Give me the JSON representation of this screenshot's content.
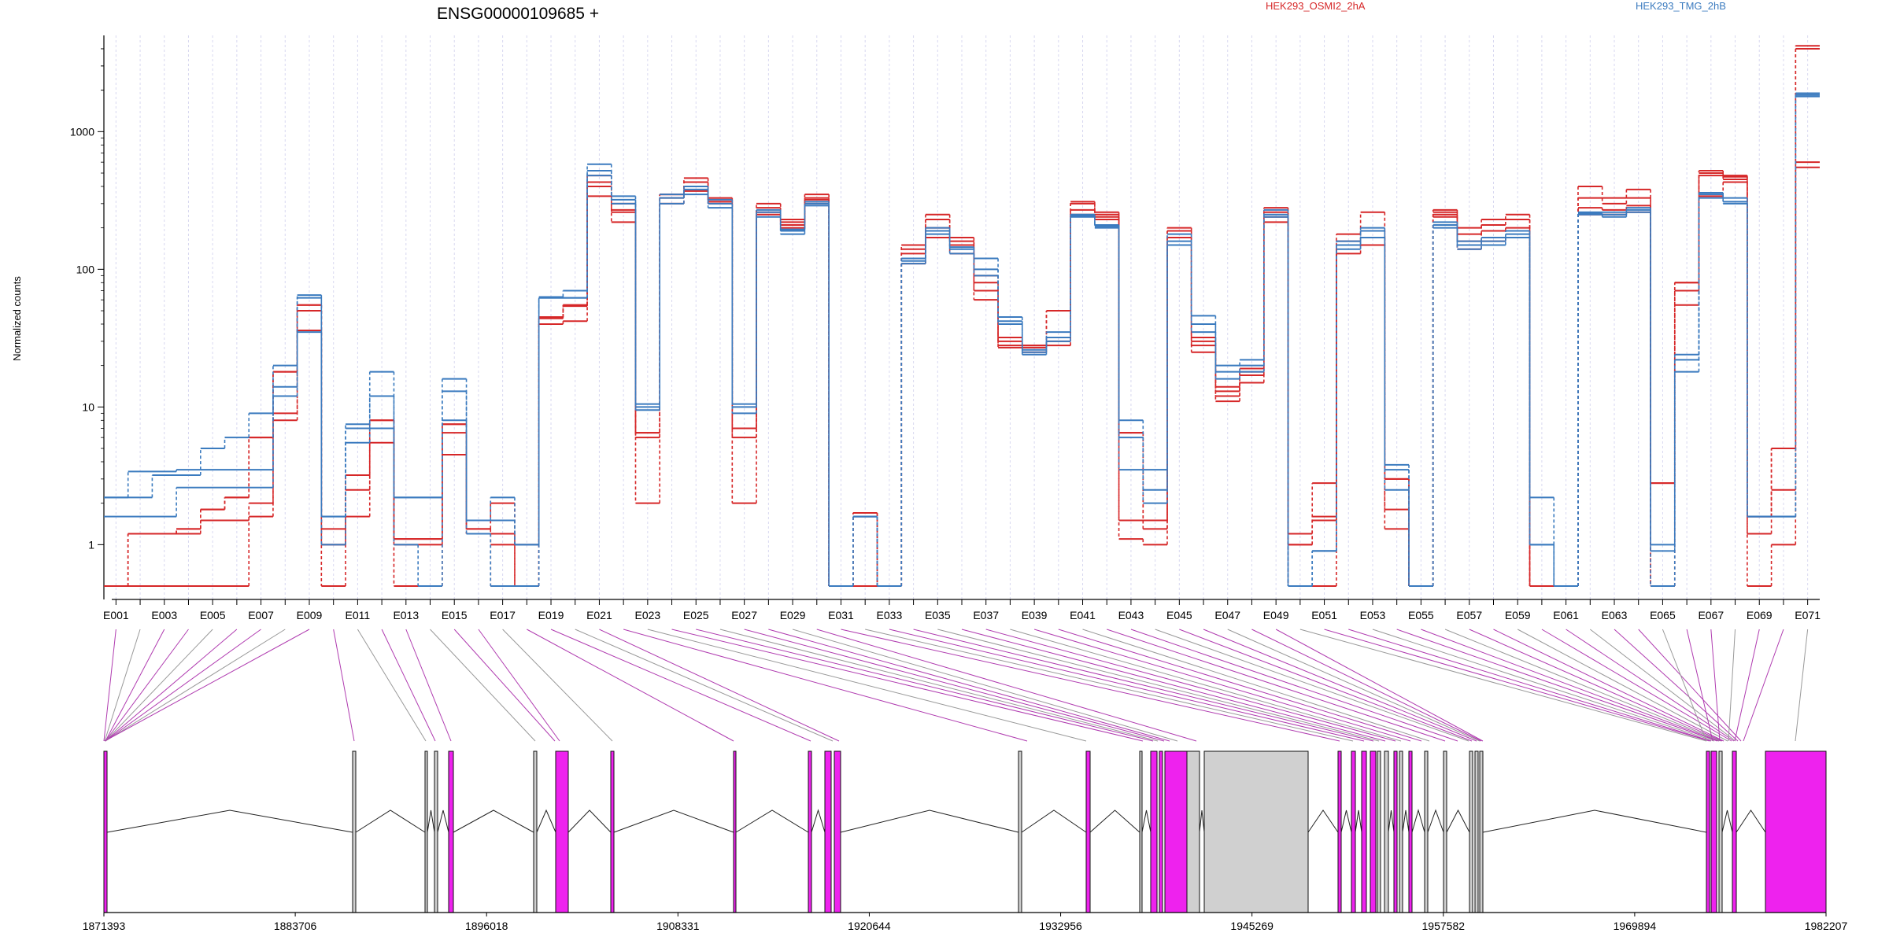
{
  "header": {
    "gene_title": "ENSG00000109685 +",
    "legend": [
      {
        "label": "HEK293_OSMI2_2hA",
        "color": "#d62728"
      },
      {
        "label": "HEK293_TMG_2hB",
        "color": "#3b7bbf"
      }
    ]
  },
  "colors": {
    "condition_a": "#d62728",
    "condition_b": "#3b7bbf",
    "exon_tested": "#ee22ee",
    "exon_untested": "#d0d0d0",
    "connector_sig": "#b03cb0",
    "connector_ns": "#999999",
    "grid": "#d8d8f0"
  },
  "chart_data": {
    "type": "line",
    "scale": "log",
    "title": "ENSG00000109685 +",
    "ylabel": "Normalized counts",
    "ylim": [
      0.4,
      5000
    ],
    "yticks": [
      1,
      10,
      100,
      1000
    ],
    "ytick_labels": [
      "1",
      "10",
      "100",
      "1000"
    ],
    "exon_labels": [
      "E001",
      "E003",
      "E005",
      "E007",
      "E009",
      "E011",
      "E013",
      "E015",
      "E017",
      "E019",
      "E021",
      "E023",
      "E025",
      "E027",
      "E029",
      "E031",
      "E033",
      "E035",
      "E037",
      "E039",
      "E041",
      "E043",
      "E045",
      "E047",
      "E049",
      "E051",
      "E053",
      "E055",
      "E057",
      "E059",
      "E061",
      "E063",
      "E065",
      "E067",
      "E069",
      "E071"
    ],
    "exon_ids": [
      "E001",
      "E002",
      "E003",
      "E004",
      "E005",
      "E006",
      "E007",
      "E008",
      "E009",
      "E010",
      "E011",
      "E012",
      "E013",
      "E014",
      "E015",
      "E016",
      "E017",
      "E018",
      "E019",
      "E020",
      "E021",
      "E022",
      "E023",
      "E024",
      "E025",
      "E026",
      "E027",
      "E028",
      "E029",
      "E030",
      "E031",
      "E032",
      "E033",
      "E034",
      "E035",
      "E036",
      "E037",
      "E038",
      "E039",
      "E040",
      "E041",
      "E042",
      "E043",
      "E044",
      "E045",
      "E046",
      "E047",
      "E048",
      "E049",
      "E050",
      "E051",
      "E052",
      "E053",
      "E054",
      "E055",
      "E056",
      "E057",
      "E058",
      "E059",
      "E060",
      "E061",
      "E062",
      "E063",
      "E064",
      "E065",
      "E066",
      "E067",
      "E068",
      "E069",
      "E070",
      "E071"
    ],
    "series": [
      {
        "name": "HEK293_OSMI2_2hA",
        "color": "#d62728",
        "values": [
          0.5,
          0.5,
          0.5,
          0.5,
          0.5,
          0.5,
          1.6,
          8,
          36,
          0.5,
          1.6,
          5.5,
          0.5,
          0.5,
          4.5,
          1.2,
          0.5,
          0.5,
          40,
          42,
          340,
          220,
          2,
          300,
          370,
          300,
          2,
          250,
          200,
          300,
          0.5,
          0.5,
          0.5,
          110,
          170,
          130,
          60,
          27,
          25,
          28,
          250,
          230,
          1.1,
          1,
          150,
          25,
          11,
          15,
          220,
          0.5,
          0.5,
          130,
          150,
          1.3,
          0.5,
          240,
          140,
          160,
          170,
          0.5,
          0.5,
          250,
          250,
          260,
          0.5,
          55,
          340,
          430,
          0.5,
          1,
          550
        ]
      },
      {
        "name": "HEK293_OSMI2_2hA",
        "color": "#d62728",
        "values": [
          0.5,
          1.2,
          1.2,
          1.2,
          1.5,
          1.5,
          2,
          9,
          50,
          1,
          2.5,
          7,
          1,
          1,
          6.5,
          1.2,
          1,
          1,
          44,
          54,
          400,
          260,
          6,
          330,
          400,
          310,
          6,
          260,
          210,
          320,
          0.5,
          1.6,
          0.5,
          130,
          200,
          150,
          70,
          28,
          27,
          30,
          270,
          240,
          1.5,
          1.3,
          170,
          28,
          12,
          17,
          240,
          1,
          1.5,
          150,
          170,
          1.8,
          0.5,
          250,
          160,
          190,
          200,
          0.5,
          0.5,
          280,
          270,
          290,
          0.5,
          70,
          480,
          450,
          1.2,
          2.5,
          600
        ]
      },
      {
        "name": "HEK293_OSMI2_2hA",
        "color": "#d62728",
        "values": [
          0.5,
          1.2,
          1.2,
          1.3,
          1.8,
          2.2,
          6,
          18,
          55,
          1,
          3.2,
          8,
          1.1,
          1.1,
          7.5,
          1.3,
          1.2,
          0.5,
          45,
          55,
          430,
          270,
          6.5,
          350,
          430,
          320,
          7,
          280,
          220,
          330,
          0.5,
          1.7,
          0.5,
          140,
          230,
          160,
          80,
          30,
          28,
          50,
          300,
          250,
          6.5,
          1.5,
          190,
          30,
          13,
          18,
          260,
          1,
          1.6,
          160,
          190,
          3,
          0.5,
          260,
          180,
          210,
          230,
          0.5,
          0.5,
          330,
          300,
          330,
          2.8,
          80,
          500,
          470,
          1.6,
          5,
          4000
        ]
      },
      {
        "name": "HEK293_OSMI2_2hA",
        "color": "#d62728",
        "values": [
          0.5,
          1.2,
          1.2,
          1.3,
          1.8,
          2.2,
          6,
          18,
          55,
          1.3,
          3.2,
          8,
          1.1,
          1.1,
          7.5,
          1.3,
          2,
          0.5,
          45,
          55,
          480,
          300,
          6.5,
          350,
          460,
          330,
          7,
          300,
          230,
          350,
          0.5,
          1.7,
          0.5,
          150,
          250,
          170,
          90,
          32,
          28,
          50,
          310,
          260,
          6.5,
          1.5,
          200,
          32,
          14,
          19,
          280,
          1.2,
          2.8,
          180,
          260,
          3,
          0.5,
          270,
          200,
          230,
          250,
          0.5,
          0.5,
          400,
          330,
          380,
          2.8,
          80,
          520,
          480,
          1.6,
          5,
          4200
        ]
      },
      {
        "name": "HEK293_TMG_2hB",
        "color": "#3b7bbf",
        "values": [
          1.6,
          1.6,
          1.6,
          2.6,
          2.6,
          2.6,
          2.6,
          12,
          35,
          1,
          5.5,
          7,
          1,
          0.5,
          8,
          1.2,
          0.5,
          0.5,
          62,
          62,
          480,
          300,
          9.5,
          300,
          350,
          280,
          9,
          240,
          180,
          290,
          0.5,
          1.6,
          0.5,
          110,
          180,
          130,
          90,
          40,
          24,
          30,
          240,
          200,
          3.5,
          2,
          150,
          35,
          16,
          18,
          240,
          0.5,
          0.9,
          140,
          170,
          2.5,
          0.5,
          200,
          140,
          150,
          170,
          1,
          0.5,
          250,
          240,
          260,
          0.5,
          18,
          330,
          300,
          1.6,
          1.6,
          1800
        ]
      },
      {
        "name": "HEK293_TMG_2hB",
        "color": "#3b7bbf",
        "values": [
          2.2,
          2.2,
          3.2,
          3.2,
          3.5,
          3.5,
          3.5,
          14,
          62,
          1.6,
          7,
          12,
          2.2,
          2.2,
          13,
          1.5,
          1.5,
          1,
          62,
          62,
          520,
          320,
          10,
          330,
          380,
          300,
          10,
          260,
          190,
          300,
          0.5,
          1.6,
          0.5,
          115,
          190,
          140,
          100,
          42,
          25,
          32,
          245,
          205,
          6,
          2.5,
          160,
          40,
          18,
          20,
          250,
          0.5,
          0.9,
          150,
          190,
          3.5,
          0.5,
          210,
          150,
          160,
          180,
          1,
          0.5,
          255,
          250,
          270,
          0.9,
          22,
          350,
          310,
          1.6,
          1.6,
          1850
        ]
      },
      {
        "name": "HEK293_TMG_2hB",
        "color": "#3b7bbf",
        "values": [
          2.2,
          3.4,
          3.4,
          3.5,
          5,
          6,
          9,
          20,
          65,
          1.6,
          7.5,
          18,
          2.2,
          2.2,
          16,
          1.5,
          2.2,
          1,
          63,
          70,
          580,
          340,
          10.5,
          350,
          400,
          320,
          10.5,
          270,
          195,
          310,
          0.5,
          1.6,
          0.5,
          120,
          200,
          145,
          120,
          45,
          26,
          35,
          250,
          210,
          8,
          3.5,
          180,
          46,
          20,
          22,
          270,
          0.5,
          0.9,
          160,
          200,
          3.8,
          0.5,
          220,
          160,
          170,
          190,
          2.2,
          0.5,
          260,
          260,
          280,
          1,
          24,
          360,
          330,
          1.6,
          1.6,
          1900
        ]
      }
    ]
  },
  "gene_model": {
    "coord_labels": [
      "1871393",
      "1883706",
      "1896018",
      "1908331",
      "1920644",
      "1932956",
      "1945269",
      "1957582",
      "1969894",
      "1982207"
    ]
  }
}
